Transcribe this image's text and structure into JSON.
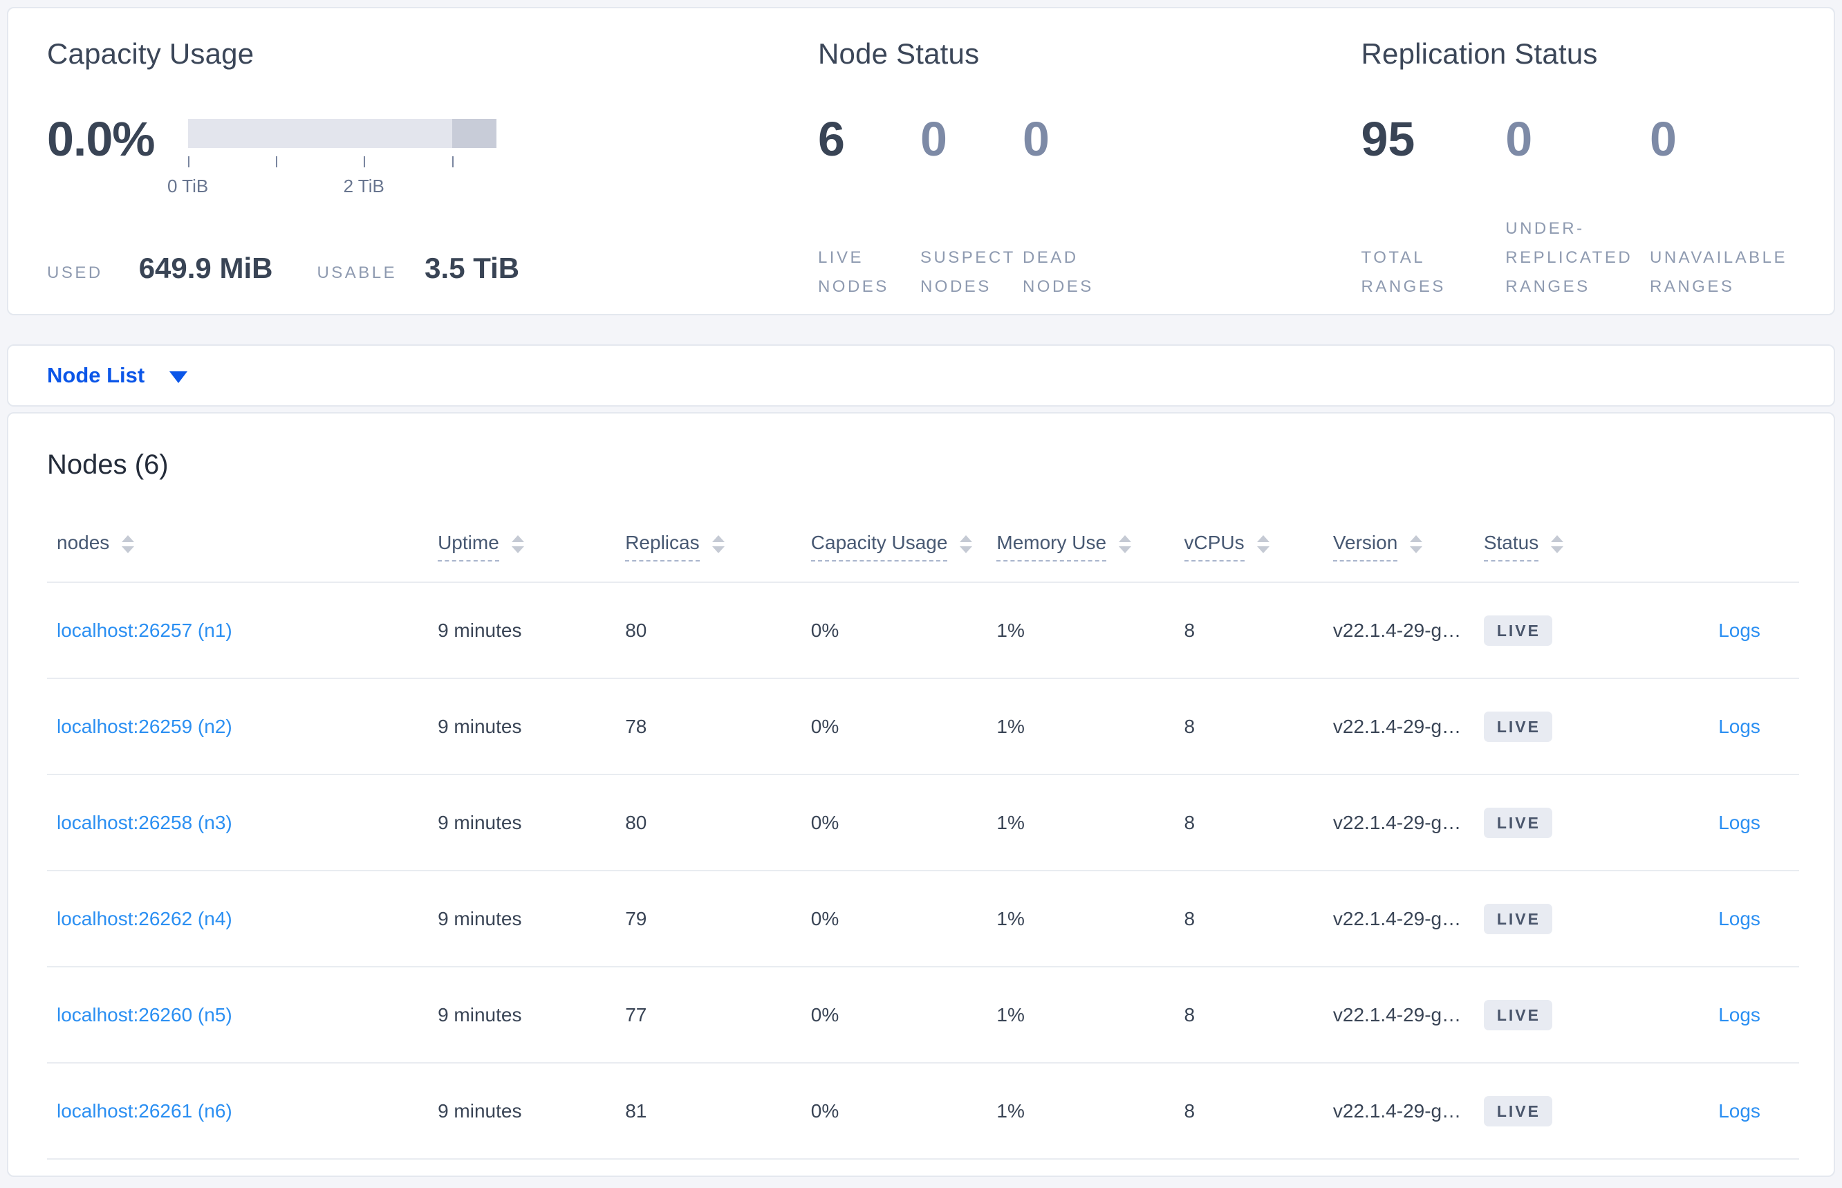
{
  "colors": {
    "accent_blue": "#0b56e8",
    "link_blue": "#2b8ff2",
    "bar_track": "#e3e5ed",
    "bar_dark": "#c8ccd8",
    "badge_bg": "#e8ebf2",
    "page_bg": "#f4f5f9"
  },
  "summary": {
    "capacity": {
      "title": "Capacity Usage",
      "percent": "0.0%",
      "used_label": "USED",
      "used_value": "649.9 MiB",
      "usable_label": "USABLE",
      "usable_value": "3.5 TiB",
      "bar": {
        "segments": [
          {
            "from": 0,
            "to": 85.7,
            "role": "usable-track"
          },
          {
            "from": 85.7,
            "to": 100,
            "role": "other-usage"
          }
        ],
        "ticks": [
          {
            "pos": 0,
            "label": "0 TiB"
          },
          {
            "pos": 28.6,
            "label": ""
          },
          {
            "pos": 57.1,
            "label": "2 TiB"
          },
          {
            "pos": 85.7,
            "label": ""
          }
        ]
      }
    },
    "node_status": {
      "title": "Node Status",
      "stats": [
        {
          "value": "6",
          "label": "LIVE NODES",
          "emphasis": true
        },
        {
          "value": "0",
          "label": "SUSPECT NODES",
          "emphasis": false
        },
        {
          "value": "0",
          "label": "DEAD NODES",
          "emphasis": false
        }
      ]
    },
    "replication": {
      "title": "Replication Status",
      "stats": [
        {
          "value": "95",
          "label": "TOTAL RANGES",
          "emphasis": true
        },
        {
          "value": "0",
          "label": "UNDER-REPLICATED RANGES",
          "emphasis": false
        },
        {
          "value": "0",
          "label": "UNAVAILABLE RANGES",
          "emphasis": false
        }
      ]
    }
  },
  "node_list_bar": {
    "label": "Node List"
  },
  "nodes_section": {
    "heading": "Nodes (6)"
  },
  "table": {
    "columns": [
      {
        "key": "node",
        "label": "nodes",
        "underline": false,
        "sortable": true,
        "width": "22.3%"
      },
      {
        "key": "uptime",
        "label": "Uptime",
        "underline": true,
        "sortable": true,
        "width": "10.7%"
      },
      {
        "key": "replicas",
        "label": "Replicas",
        "underline": true,
        "sortable": true,
        "width": "10.6%"
      },
      {
        "key": "capacity",
        "label": "Capacity Usage",
        "underline": true,
        "sortable": true,
        "width": "10.6%"
      },
      {
        "key": "memory",
        "label": "Memory Use",
        "underline": true,
        "sortable": true,
        "width": "10.7%"
      },
      {
        "key": "vcpus",
        "label": "vCPUs",
        "underline": true,
        "sortable": true,
        "width": "8.5%"
      },
      {
        "key": "version",
        "label": "Version",
        "underline": true,
        "sortable": true,
        "width": "8.6%"
      },
      {
        "key": "status",
        "label": "Status",
        "underline": true,
        "sortable": true,
        "width": "8.0%"
      },
      {
        "key": "logs",
        "label": "",
        "underline": false,
        "sortable": false,
        "width": "10.0%"
      }
    ],
    "rows": [
      {
        "node": "localhost:26257 (n1)",
        "uptime": "9 minutes",
        "replicas": "80",
        "capacity": "0%",
        "memory": "1%",
        "vcpus": "8",
        "version": "v22.1.4-29-g…",
        "status": "LIVE",
        "logs": "Logs"
      },
      {
        "node": "localhost:26259 (n2)",
        "uptime": "9 minutes",
        "replicas": "78",
        "capacity": "0%",
        "memory": "1%",
        "vcpus": "8",
        "version": "v22.1.4-29-g…",
        "status": "LIVE",
        "logs": "Logs"
      },
      {
        "node": "localhost:26258 (n3)",
        "uptime": "9 minutes",
        "replicas": "80",
        "capacity": "0%",
        "memory": "1%",
        "vcpus": "8",
        "version": "v22.1.4-29-g…",
        "status": "LIVE",
        "logs": "Logs"
      },
      {
        "node": "localhost:26262 (n4)",
        "uptime": "9 minutes",
        "replicas": "79",
        "capacity": "0%",
        "memory": "1%",
        "vcpus": "8",
        "version": "v22.1.4-29-g…",
        "status": "LIVE",
        "logs": "Logs"
      },
      {
        "node": "localhost:26260 (n5)",
        "uptime": "9 minutes",
        "replicas": "77",
        "capacity": "0%",
        "memory": "1%",
        "vcpus": "8",
        "version": "v22.1.4-29-g…",
        "status": "LIVE",
        "logs": "Logs"
      },
      {
        "node": "localhost:26261 (n6)",
        "uptime": "9 minutes",
        "replicas": "81",
        "capacity": "0%",
        "memory": "1%",
        "vcpus": "8",
        "version": "v22.1.4-29-g…",
        "status": "LIVE",
        "logs": "Logs"
      }
    ]
  }
}
